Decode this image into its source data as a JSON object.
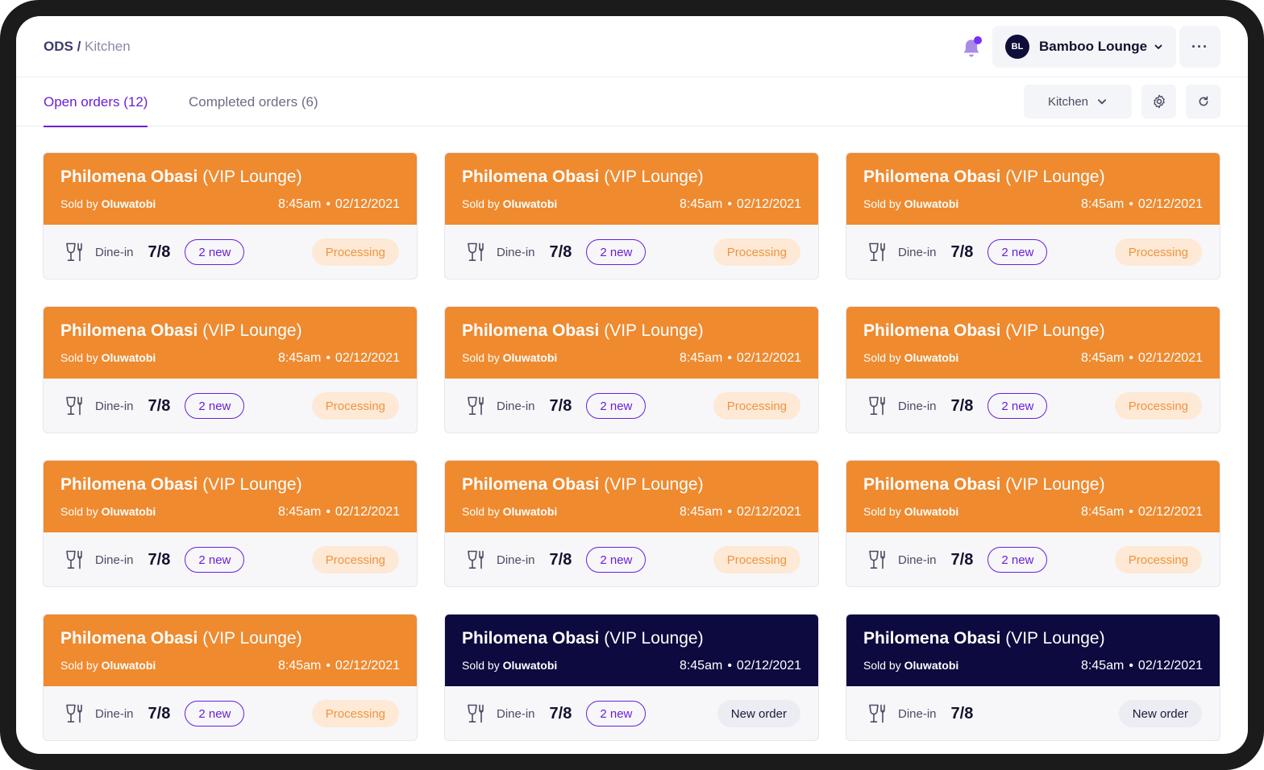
{
  "breadcrumb": {
    "root": "ODS",
    "separator": " / ",
    "current": "Kitchen"
  },
  "header": {
    "avatar_initials": "BL",
    "venue_name": "Bamboo Lounge",
    "more_label": "···",
    "notification_dot_color": "#7b2ff7"
  },
  "tabs": {
    "open": "Open orders (12)",
    "completed": "Completed orders (6)"
  },
  "toolbar": {
    "station": "Kitchen"
  },
  "colors": {
    "accent": "#6a1fd8",
    "processing": "#ef8a2f",
    "new_order": "#0c0a3e"
  },
  "orders": [
    {
      "customer": "Philomena Obasi",
      "location": " (VIP Lounge)",
      "sold_by_label": "Sold by ",
      "seller": "Oluwatobi",
      "time": "8:45am",
      "date": "02/12/2021",
      "type": "Dine-in",
      "table": "7/8",
      "new_items": "2 new",
      "status": "Processing",
      "state": "processing"
    },
    {
      "customer": "Philomena Obasi",
      "location": " (VIP Lounge)",
      "sold_by_label": "Sold by ",
      "seller": "Oluwatobi",
      "time": "8:45am",
      "date": "02/12/2021",
      "type": "Dine-in",
      "table": "7/8",
      "new_items": "2 new",
      "status": "Processing",
      "state": "processing"
    },
    {
      "customer": "Philomena Obasi",
      "location": " (VIP Lounge)",
      "sold_by_label": "Sold by ",
      "seller": "Oluwatobi",
      "time": "8:45am",
      "date": "02/12/2021",
      "type": "Dine-in",
      "table": "7/8",
      "new_items": "2 new",
      "status": "Processing",
      "state": "processing"
    },
    {
      "customer": "Philomena Obasi",
      "location": " (VIP Lounge)",
      "sold_by_label": "Sold by ",
      "seller": "Oluwatobi",
      "time": "8:45am",
      "date": "02/12/2021",
      "type": "Dine-in",
      "table": "7/8",
      "new_items": "2 new",
      "status": "Processing",
      "state": "processing"
    },
    {
      "customer": "Philomena Obasi",
      "location": " (VIP Lounge)",
      "sold_by_label": "Sold by ",
      "seller": "Oluwatobi",
      "time": "8:45am",
      "date": "02/12/2021",
      "type": "Dine-in",
      "table": "7/8",
      "new_items": "2 new",
      "status": "Processing",
      "state": "processing"
    },
    {
      "customer": "Philomena Obasi",
      "location": " (VIP Lounge)",
      "sold_by_label": "Sold by ",
      "seller": "Oluwatobi",
      "time": "8:45am",
      "date": "02/12/2021",
      "type": "Dine-in",
      "table": "7/8",
      "new_items": "2 new",
      "status": "Processing",
      "state": "processing"
    },
    {
      "customer": "Philomena Obasi",
      "location": " (VIP Lounge)",
      "sold_by_label": "Sold by ",
      "seller": "Oluwatobi",
      "time": "8:45am",
      "date": "02/12/2021",
      "type": "Dine-in",
      "table": "7/8",
      "new_items": "2 new",
      "status": "Processing",
      "state": "processing"
    },
    {
      "customer": "Philomena Obasi",
      "location": " (VIP Lounge)",
      "sold_by_label": "Sold by ",
      "seller": "Oluwatobi",
      "time": "8:45am",
      "date": "02/12/2021",
      "type": "Dine-in",
      "table": "7/8",
      "new_items": "2 new",
      "status": "Processing",
      "state": "processing"
    },
    {
      "customer": "Philomena Obasi",
      "location": " (VIP Lounge)",
      "sold_by_label": "Sold by ",
      "seller": "Oluwatobi",
      "time": "8:45am",
      "date": "02/12/2021",
      "type": "Dine-in",
      "table": "7/8",
      "new_items": "2 new",
      "status": "Processing",
      "state": "processing"
    },
    {
      "customer": "Philomena Obasi",
      "location": " (VIP Lounge)",
      "sold_by_label": "Sold by ",
      "seller": "Oluwatobi",
      "time": "8:45am",
      "date": "02/12/2021",
      "type": "Dine-in",
      "table": "7/8",
      "new_items": "2 new",
      "status": "Processing",
      "state": "processing"
    },
    {
      "customer": "Philomena Obasi",
      "location": " (VIP Lounge)",
      "sold_by_label": "Sold by ",
      "seller": "Oluwatobi",
      "time": "8:45am",
      "date": "02/12/2021",
      "type": "Dine-in",
      "table": "7/8",
      "new_items": "2 new",
      "status": "New order",
      "state": "new"
    },
    {
      "customer": "Philomena Obasi",
      "location": " (VIP Lounge)",
      "sold_by_label": "Sold by ",
      "seller": "Oluwatobi",
      "time": "8:45am",
      "date": "02/12/2021",
      "type": "Dine-in",
      "table": "7/8",
      "new_items": "",
      "status": "New order",
      "state": "new"
    }
  ]
}
